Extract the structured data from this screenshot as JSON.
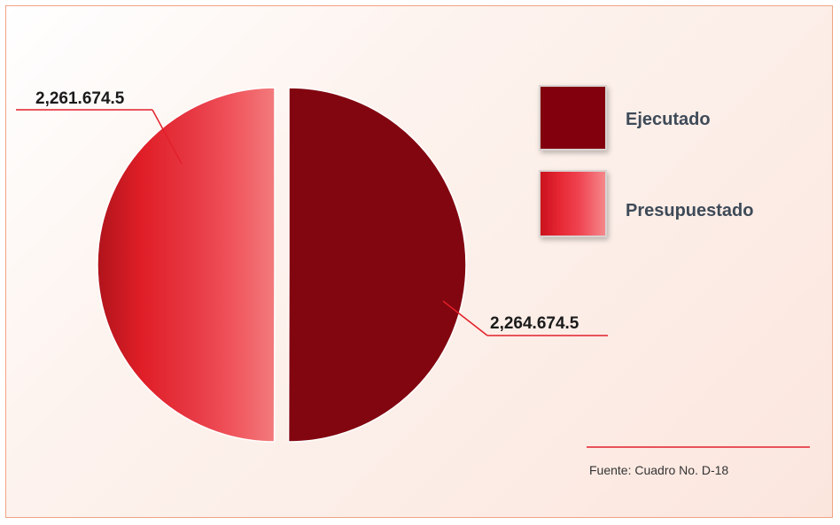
{
  "chart_data": {
    "type": "pie",
    "series": [
      {
        "name": "Ejecutado",
        "value": 2264674.5,
        "label": "2,264.674.5",
        "color": "#820610"
      },
      {
        "name": "Presupuestado",
        "value": 2261674.5,
        "label": "2,261.674.5",
        "color": "#e8283a"
      }
    ],
    "legend_position": "right"
  },
  "legend": [
    {
      "label": "Ejecutado",
      "color": "#820610"
    },
    {
      "label": "Presupuestado",
      "color": "#e8283a"
    }
  ],
  "source_note": "Fuente: Cuadro No. D-18"
}
